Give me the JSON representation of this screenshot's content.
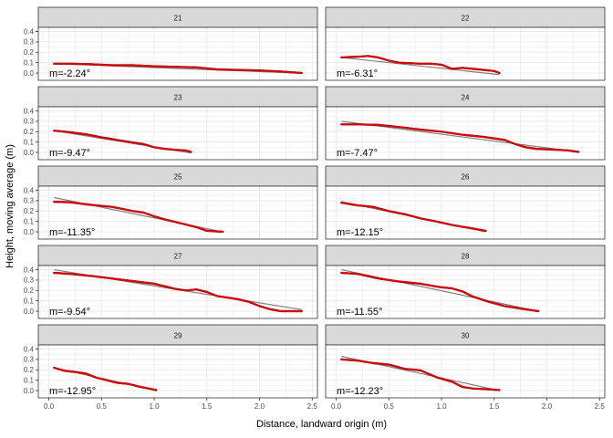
{
  "chart_data": {
    "type": "line",
    "facet_layout": "2 columns x 5 rows, shared axes",
    "xlabel": "Distance, landward origin (m)",
    "ylabel": "Height, moving average (m)",
    "xlim": [
      -0.1,
      2.55
    ],
    "ylim": [
      -0.07,
      0.44
    ],
    "x_ticks": [
      "0.0",
      "0.5",
      "1.0",
      "1.5",
      "2.0",
      "2.5"
    ],
    "y_ticks": [
      "0.0",
      "0.1",
      "0.2",
      "0.3",
      "0.4"
    ],
    "grid": true,
    "colors": {
      "profile": "#e60000",
      "profile_shadow": "#333333",
      "fit": "#808080",
      "strip_fill": "#d9d9d9",
      "panel_border": "#333333",
      "grid_major": "#ebebeb"
    },
    "panels": [
      {
        "label": "21",
        "slope_label": "m=-2.24°",
        "fit": [
          [
            0.05,
            0.09
          ],
          [
            2.4,
            -0.002
          ]
        ],
        "x": [
          0.05,
          0.2,
          0.4,
          0.6,
          0.8,
          1.0,
          1.2,
          1.4,
          1.6,
          1.8,
          2.0,
          2.2,
          2.4
        ],
        "y": [
          0.09,
          0.09,
          0.085,
          0.075,
          0.075,
          0.065,
          0.06,
          0.055,
          0.035,
          0.03,
          0.025,
          0.015,
          0.0
        ]
      },
      {
        "label": "22",
        "slope_label": "m=-6.31°",
        "fit": [
          [
            0.05,
            0.15
          ],
          [
            1.55,
            -0.015
          ]
        ],
        "x": [
          0.05,
          0.15,
          0.25,
          0.3,
          0.4,
          0.5,
          0.6,
          0.7,
          0.8,
          0.9,
          1.0,
          1.1,
          1.2,
          1.3,
          1.4,
          1.5,
          1.55
        ],
        "y": [
          0.15,
          0.155,
          0.16,
          0.165,
          0.15,
          0.12,
          0.1,
          0.095,
          0.09,
          0.09,
          0.08,
          0.04,
          0.05,
          0.04,
          0.03,
          0.02,
          0.0
        ]
      },
      {
        "label": "23",
        "slope_label": "m=-9.47°",
        "fit": [
          [
            0.05,
            0.21
          ],
          [
            1.35,
            -0.005
          ]
        ],
        "x": [
          0.05,
          0.2,
          0.35,
          0.5,
          0.65,
          0.8,
          0.9,
          1.0,
          1.1,
          1.2,
          1.3,
          1.35
        ],
        "y": [
          0.21,
          0.195,
          0.175,
          0.145,
          0.12,
          0.095,
          0.08,
          0.05,
          0.035,
          0.025,
          0.02,
          0.005
        ]
      },
      {
        "label": "24",
        "slope_label": "m=-7.47°",
        "fit": [
          [
            0.05,
            0.3
          ],
          [
            2.3,
            0.005
          ]
        ],
        "x": [
          0.05,
          0.2,
          0.4,
          0.6,
          0.8,
          1.0,
          1.2,
          1.4,
          1.6,
          1.7,
          1.8,
          1.9,
          2.0,
          2.2,
          2.3
        ],
        "y": [
          0.27,
          0.27,
          0.265,
          0.245,
          0.22,
          0.2,
          0.17,
          0.15,
          0.12,
          0.08,
          0.05,
          0.035,
          0.03,
          0.02,
          0.005
        ]
      },
      {
        "label": "25",
        "slope_label": "m=-11.35°",
        "fit": [
          [
            0.05,
            0.33
          ],
          [
            1.65,
            0.0
          ]
        ],
        "x": [
          0.05,
          0.2,
          0.4,
          0.6,
          0.8,
          0.9,
          1.0,
          1.1,
          1.2,
          1.3,
          1.4,
          1.5,
          1.65
        ],
        "y": [
          0.29,
          0.285,
          0.26,
          0.24,
          0.2,
          0.185,
          0.15,
          0.12,
          0.095,
          0.07,
          0.045,
          0.01,
          0.0
        ]
      },
      {
        "label": "26",
        "slope_label": "m=-12.15°",
        "fit": [
          [
            0.05,
            0.29
          ],
          [
            1.42,
            0.0
          ]
        ],
        "x": [
          0.05,
          0.2,
          0.35,
          0.5,
          0.65,
          0.8,
          0.95,
          1.1,
          1.25,
          1.42
        ],
        "y": [
          0.28,
          0.255,
          0.24,
          0.2,
          0.17,
          0.13,
          0.1,
          0.065,
          0.04,
          0.01
        ]
      },
      {
        "label": "27",
        "slope_label": "m=-9.54°",
        "fit": [
          [
            0.05,
            0.4
          ],
          [
            2.4,
            0.015
          ]
        ],
        "x": [
          0.05,
          0.2,
          0.4,
          0.6,
          0.8,
          1.0,
          1.1,
          1.2,
          1.3,
          1.4,
          1.5,
          1.6,
          1.8,
          1.9,
          2.0,
          2.1,
          2.2,
          2.4
        ],
        "y": [
          0.37,
          0.36,
          0.34,
          0.315,
          0.29,
          0.265,
          0.24,
          0.215,
          0.2,
          0.21,
          0.185,
          0.145,
          0.115,
          0.09,
          0.05,
          0.02,
          0.0,
          0.0
        ]
      },
      {
        "label": "28",
        "slope_label": "m=-11.55°",
        "fit": [
          [
            0.05,
            0.4
          ],
          [
            1.92,
            0.0
          ]
        ],
        "x": [
          0.05,
          0.2,
          0.4,
          0.6,
          0.8,
          1.0,
          1.1,
          1.2,
          1.3,
          1.45,
          1.6,
          1.75,
          1.92
        ],
        "y": [
          0.37,
          0.36,
          0.315,
          0.285,
          0.265,
          0.23,
          0.22,
          0.19,
          0.14,
          0.09,
          0.05,
          0.025,
          0.0
        ]
      },
      {
        "label": "29",
        "slope_label": "m=-12.95°",
        "fit": [
          [
            0.05,
            0.22
          ],
          [
            1.02,
            0.0
          ]
        ],
        "x": [
          0.05,
          0.15,
          0.25,
          0.35,
          0.45,
          0.55,
          0.65,
          0.75,
          0.85,
          0.95,
          1.02
        ],
        "y": [
          0.22,
          0.19,
          0.18,
          0.165,
          0.125,
          0.1,
          0.075,
          0.065,
          0.04,
          0.02,
          0.005
        ]
      },
      {
        "label": "30",
        "slope_label": "m=-12.23°",
        "fit": [
          [
            0.05,
            0.33
          ],
          [
            1.55,
            0.0
          ]
        ],
        "x": [
          0.05,
          0.2,
          0.35,
          0.5,
          0.65,
          0.8,
          0.95,
          1.1,
          1.2,
          1.3,
          1.4,
          1.55
        ],
        "y": [
          0.3,
          0.29,
          0.265,
          0.25,
          0.21,
          0.195,
          0.13,
          0.085,
          0.035,
          0.02,
          0.015,
          0.005
        ]
      }
    ]
  }
}
